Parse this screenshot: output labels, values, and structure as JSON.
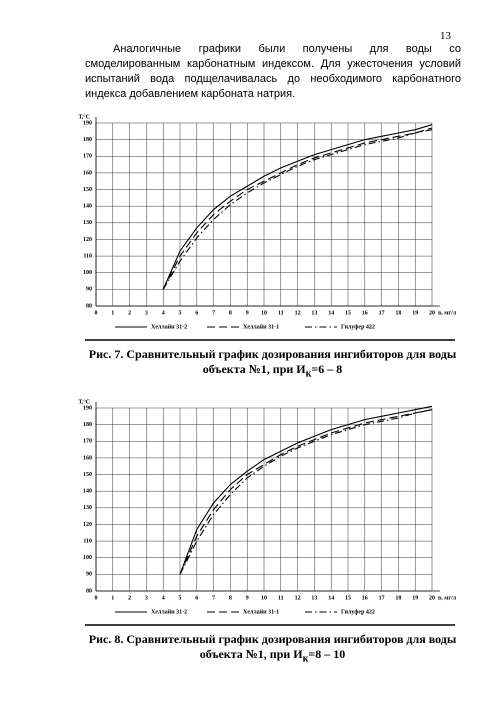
{
  "page_number": "13",
  "paragraph": "Аналогичные графики были получены для воды со смоделированным карбонатным индексом. Для ужесточения условий испытаний вода подщелачивалась до необходимого карбонатного индекса добавлением карбоната натрия.",
  "chart_data": [
    {
      "type": "line",
      "ylabel": "Т,°С",
      "xlabel": "в, мг/л",
      "xlim": [
        0,
        20
      ],
      "ylim": [
        80,
        190
      ],
      "xticks": [
        0,
        1,
        2,
        3,
        4,
        5,
        6,
        7,
        8,
        9,
        10,
        11,
        12,
        13,
        14,
        15,
        16,
        17,
        18,
        19,
        20
      ],
      "yticks": [
        80,
        90,
        100,
        110,
        120,
        130,
        140,
        150,
        160,
        170,
        180,
        190
      ],
      "grid": true,
      "x": [
        4,
        5,
        6,
        7,
        8,
        9,
        10,
        11,
        12,
        13,
        14,
        15,
        16,
        17,
        18,
        19,
        20
      ],
      "series": [
        {
          "name": "Хеллайн 31-2",
          "color": "#000000",
          "dash": "solid",
          "values": [
            90,
            113,
            127,
            138,
            146,
            152,
            158,
            163,
            167,
            171,
            174,
            177,
            180,
            182,
            184,
            186,
            189
          ]
        },
        {
          "name": "Хеллайн 31-1",
          "color": "#000000",
          "dash": "dashed",
          "values": [
            90,
            110,
            124,
            135,
            143,
            150,
            155,
            160,
            165,
            169,
            172,
            175,
            178,
            180,
            182,
            184,
            187
          ]
        },
        {
          "name": "Гилуфер 422",
          "color": "#000000",
          "dash": "dashdot",
          "values": [
            90,
            107,
            121,
            132,
            141,
            148,
            154,
            159,
            164,
            168,
            171,
            174,
            177,
            179,
            181,
            184,
            186
          ]
        }
      ],
      "caption": {
        "text": "Рис. 7. Сравнительный график дозирования ингибиторов для воды объекта №1,  при И",
        "sub": "к",
        "tail": "=6 – 8"
      }
    },
    {
      "type": "line",
      "ylabel": "Т,°С",
      "xlabel": "в, мг/л",
      "xlim": [
        0,
        20
      ],
      "ylim": [
        80,
        190
      ],
      "xticks": [
        0,
        1,
        2,
        3,
        4,
        5,
        6,
        7,
        8,
        9,
        10,
        11,
        12,
        13,
        14,
        15,
        16,
        17,
        18,
        19,
        20
      ],
      "yticks": [
        80,
        90,
        100,
        110,
        120,
        130,
        140,
        150,
        160,
        170,
        180,
        190
      ],
      "grid": true,
      "x": [
        5,
        6,
        7,
        8,
        9,
        10,
        11,
        12,
        13,
        14,
        15,
        16,
        17,
        18,
        19,
        20
      ],
      "series": [
        {
          "name": "Хеллайн 31-2",
          "color": "#000000",
          "dash": "solid",
          "values": [
            90,
            117,
            133,
            144,
            152,
            159,
            164,
            169,
            173,
            177,
            180,
            183,
            185,
            187,
            189,
            191
          ]
        },
        {
          "name": "Хеллайн 31-1",
          "color": "#000000",
          "dash": "dashed",
          "values": [
            90,
            113,
            129,
            141,
            150,
            156,
            162,
            167,
            171,
            175,
            178,
            181,
            183,
            185,
            187,
            189
          ]
        },
        {
          "name": "Гилуфер 422",
          "color": "#000000",
          "dash": "dashdot",
          "values": [
            90,
            110,
            126,
            138,
            148,
            155,
            161,
            166,
            170,
            174,
            177,
            180,
            182,
            184,
            187,
            189
          ]
        }
      ],
      "caption": {
        "text": "Рис. 8. Сравнительный график дозирования ингибиторов для воды объекта №1,  при И",
        "sub": "к",
        "tail": "=8 – 10"
      }
    }
  ]
}
